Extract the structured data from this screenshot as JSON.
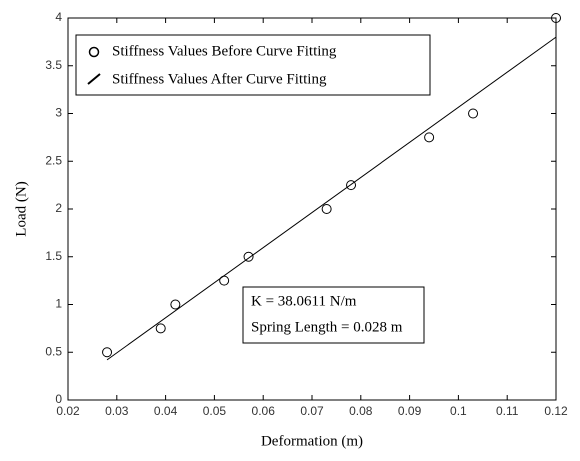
{
  "chart_data": {
    "type": "scatter",
    "xlabel": "Deformation (m)",
    "ylabel": "Load (N)",
    "xlim": [
      0.02,
      0.12
    ],
    "xticks": [
      0.02,
      0.03,
      0.04,
      0.05,
      0.06,
      0.07,
      0.08,
      0.09,
      0.1,
      0.11,
      0.12
    ],
    "ylim": [
      0,
      4
    ],
    "yticks": [
      0,
      0.5,
      1,
      1.5,
      2,
      2.5,
      3,
      3.5,
      4
    ],
    "series": [
      {
        "name": "Stiffness Values Before Curve Fitting",
        "style": "marker",
        "color": "#000000",
        "x": [
          0.028,
          0.039,
          0.042,
          0.052,
          0.057,
          0.073,
          0.078,
          0.094,
          0.103,
          0.12
        ],
        "values": [
          0.5,
          0.75,
          1.0,
          1.25,
          1.5,
          2.0,
          2.25,
          2.75,
          3.0,
          4.0
        ]
      },
      {
        "name": "Stiffness Values After Curve Fitting",
        "style": "line",
        "color": "#000000",
        "x": [
          0.028,
          0.12
        ],
        "values": [
          0.42,
          3.8
        ]
      }
    ],
    "annotations": [
      "K = 38.0611 N/m",
      "Spring Length = 0.028 m"
    ]
  }
}
